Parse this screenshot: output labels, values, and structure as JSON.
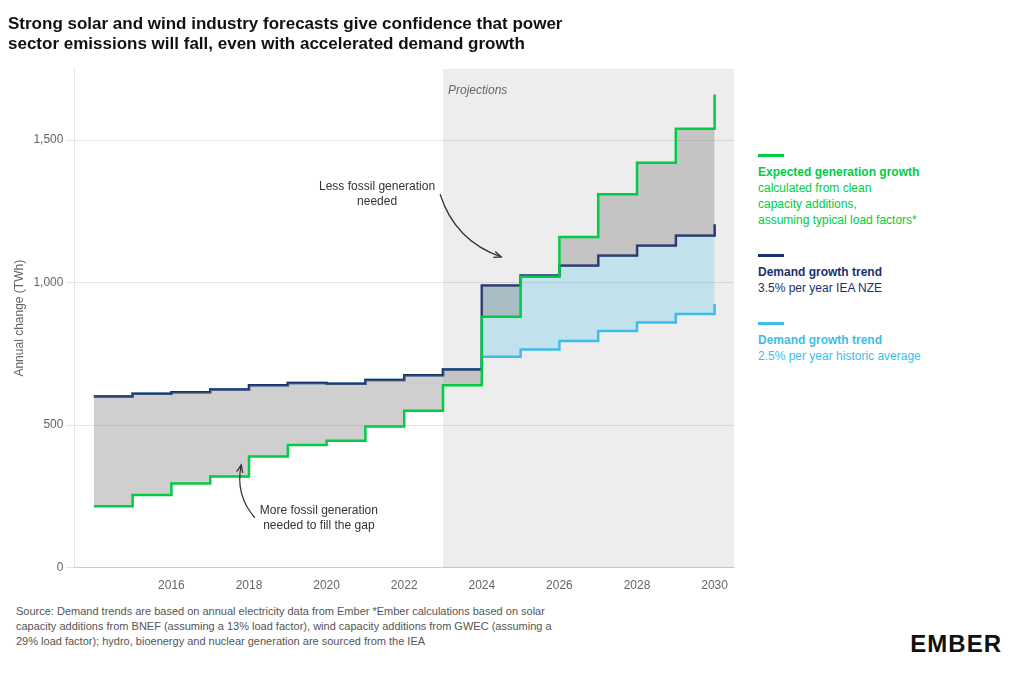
{
  "chart_data": {
    "type": "line",
    "line_style": "step",
    "title": "Strong solar and wind industry forecasts give confidence that power\nsector emissions will fall, even with accelerated demand growth",
    "ylabel": "Annual change (TWh)",
    "x": [
      2014,
      2015,
      2016,
      2017,
      2018,
      2019,
      2020,
      2021,
      2022,
      2023,
      2024,
      2025,
      2026,
      2027,
      2028,
      2029,
      2030
    ],
    "series": [
      {
        "name": "Expected generation growth\ncalculated from clean\ncapacity additions,\nassuming typical load factors*",
        "color": "#00cc44",
        "values": [
          215,
          255,
          295,
          320,
          390,
          430,
          445,
          495,
          550,
          640,
          880,
          1020,
          1160,
          1310,
          1420,
          1540,
          1660
        ]
      },
      {
        "name": "Demand growth trend\n3.5% per year IEA NZE",
        "color": "#1a2f6e",
        "values": [
          600,
          610,
          615,
          625,
          640,
          648,
          645,
          658,
          675,
          695,
          990,
          1025,
          1060,
          1095,
          1130,
          1165,
          1205
        ]
      },
      {
        "name": "Demand growth trend\n2.5% per year historic average",
        "color": "#3dbde8",
        "values": [
          600,
          610,
          615,
          625,
          640,
          648,
          645,
          658,
          675,
          695,
          740,
          765,
          795,
          830,
          860,
          890,
          925
        ]
      }
    ],
    "xlim": [
      2013.5,
      2030.5
    ],
    "xticks": [
      2016,
      2018,
      2020,
      2022,
      2024,
      2026,
      2028,
      2030
    ],
    "ylim": [
      0,
      1750
    ],
    "yticks": [
      0,
      500,
      {
        "value": 1000,
        "label": "1,000"
      },
      {
        "value": 1500,
        "label": "1,500"
      }
    ],
    "grid": "y",
    "legend": "right",
    "annotations": [
      {
        "text": "Projections",
        "x": 2023,
        "y": 1695,
        "region": true
      },
      {
        "text": "Less fossil generation\nneeded",
        "x": 2021.3,
        "y": 1310,
        "arrow_to": [
          2024.5,
          1090
        ]
      },
      {
        "text": "More fossil generation\nneeded to fill the gap",
        "x": 2019.8,
        "y": 175,
        "arrow_to": [
          2017.8,
          360
        ]
      }
    ],
    "source": "Source: Demand trends are based on annual electricity data from Ember *Ember calculations based on solar\ncapacity additions from BNEF (assuming a 13% load factor), wind capacity additions from GWEC (assuming a\n29% load factor); hydro, bioenergy and nuclear generation are sourced from the IEA",
    "logo": "EMBER"
  }
}
